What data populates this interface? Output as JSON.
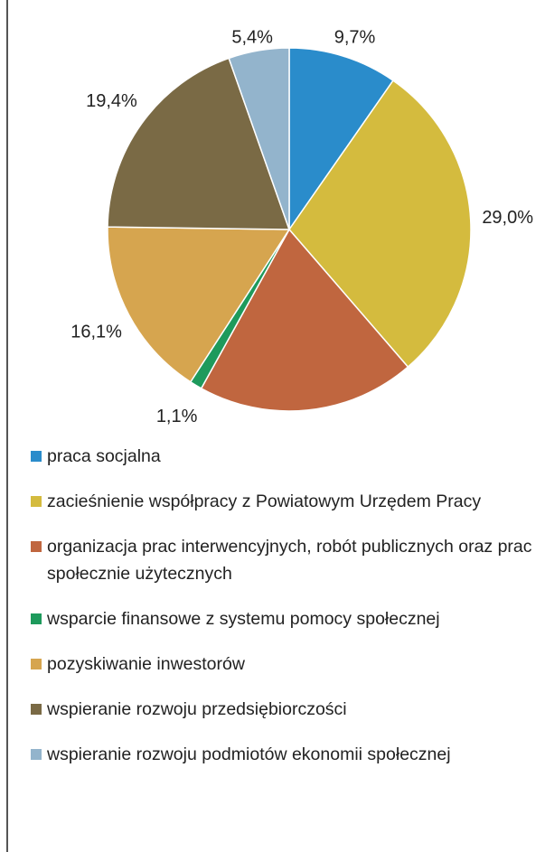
{
  "chart_data": {
    "type": "pie",
    "categories": [
      "praca socjalna",
      "zacieśnienie współpracy z Powiatowym Urzędem Pracy",
      "organizacja prac interwencyjnych, robót publicznych oraz prac społecznie użytecznych",
      "wsparcie finansowe z systemu pomocy społecznej",
      "pozyskiwanie inwestorów",
      "wspieranie rozwoju przedsiębiorczości",
      "wspieranie rozwoju podmiotów ekonomii społecznej"
    ],
    "values": [
      9.7,
      29.0,
      19.4,
      1.1,
      16.1,
      19.4,
      5.4
    ],
    "value_labels": [
      "9,7%",
      "29,0%",
      "19,4%",
      "1,1%",
      "16,1%",
      "19,4%",
      "5,4%"
    ],
    "colors": [
      "#2a8ccb",
      "#d4bb3e",
      "#c0663f",
      "#1e9a5c",
      "#d6a54f",
      "#7a6a45",
      "#93b4cc"
    ]
  }
}
